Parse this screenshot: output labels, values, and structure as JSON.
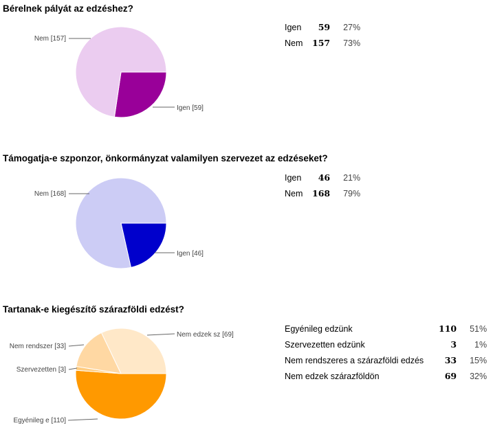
{
  "questions": [
    {
      "title": "Bérelnek pályát az edzéshez?",
      "rows": [
        {
          "label": "Igen",
          "count": "59",
          "percent": "27%"
        },
        {
          "label": "Nem",
          "count": "157",
          "percent": "73%"
        }
      ]
    },
    {
      "title": "Támogatja-e szponzor, önkormányzat valamilyen szervezet az edzéseket?",
      "rows": [
        {
          "label": "Igen",
          "count": "46",
          "percent": "21%"
        },
        {
          "label": "Nem",
          "count": "168",
          "percent": "79%"
        }
      ]
    },
    {
      "title": "Tartanak-e kiegészítő szárazföldi edzést?",
      "rows": [
        {
          "label": "Egyénileg edzünk",
          "count": "110",
          "percent": "51%"
        },
        {
          "label": "Szervezetten edzünk",
          "count": "3",
          "percent": "1%"
        },
        {
          "label": "Nem rendszeres a szárazföldi edzés",
          "count": "33",
          "percent": "15%"
        },
        {
          "label": "Nem edzek szárazföldön",
          "count": "69",
          "percent": "32%"
        }
      ]
    }
  ],
  "chart_data": [
    {
      "type": "pie",
      "title": "Bérelnek pályát az edzéshez?",
      "categories": [
        "Igen",
        "Nem"
      ],
      "values": [
        59,
        157
      ],
      "slice_labels": [
        "Igen [59]",
        "Nem [157]"
      ],
      "colors": [
        "#990099",
        "#ebccf0"
      ]
    },
    {
      "type": "pie",
      "title": "Támogatja-e szponzor, önkormányzat valamilyen szervezet az edzéseket?",
      "categories": [
        "Igen",
        "Nem"
      ],
      "values": [
        46,
        168
      ],
      "slice_labels": [
        "Igen [46]",
        "Nem [168]"
      ],
      "colors": [
        "#0000cc",
        "#ccccf5"
      ]
    },
    {
      "type": "pie",
      "title": "Tartanak-e kiegészítő szárazföldi edzést?",
      "categories": [
        "Egyénileg edzünk",
        "Szervezetten edzünk",
        "Nem rendszeres a szárazföldi edzés",
        "Nem edzek szárazföldön"
      ],
      "values": [
        110,
        3,
        33,
        69
      ],
      "slice_labels": [
        "Egyénileg e [110]",
        "Szervezetten  [3]",
        "Nem rendszer [33]",
        "Nem edzek sz [69]"
      ],
      "colors": [
        "#ff9900",
        "#ffcc80",
        "#ffd8a3",
        "#ffe8c8"
      ]
    }
  ]
}
